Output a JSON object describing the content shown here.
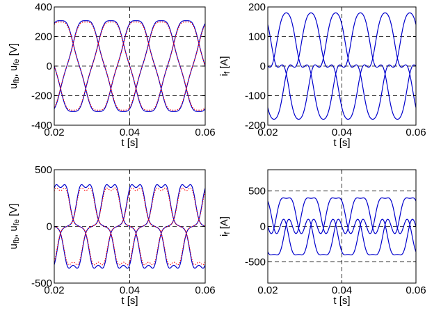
{
  "chart_data": [
    {
      "type": "line",
      "xlabel": "t [s]",
      "ylabel": "u_fb, u_fe [V]",
      "ylabel_parts": {
        "a": "u",
        "a_sub": "fb",
        "sep": ", ",
        "b": "u",
        "b_sub": "fe",
        "unit": " [V]"
      },
      "xlim": [
        0.02,
        0.06
      ],
      "ylim": [
        -400,
        400
      ],
      "xticks": [
        0.02,
        0.04,
        0.06
      ],
      "xtick_labels": [
        "0.02",
        "0.04",
        "0.06"
      ],
      "yticks": [
        -400,
        -200,
        0,
        200,
        400
      ],
      "ytick_labels": [
        "-400",
        "-200",
        "0",
        "200",
        "400"
      ],
      "grid_y": [
        -200,
        0,
        200
      ],
      "grid_x": [
        0.04
      ],
      "model": {
        "amplitude": 320,
        "freq_hz": 50,
        "phases_deg": [
          60,
          -60,
          180
        ],
        "h5": 0.04
      },
      "series": [
        {
          "style": "solid",
          "color": "#0000cc"
        },
        {
          "style": "dotted",
          "color": "#ff0000",
          "scale": 0.97
        }
      ]
    },
    {
      "type": "line",
      "xlabel": "t [s]",
      "ylabel": "i_f [A]",
      "ylabel_parts": {
        "a": "i",
        "a_sub": "f",
        "unit": " [A]"
      },
      "xlim": [
        0.02,
        0.06
      ],
      "ylim": [
        -200,
        200
      ],
      "xticks": [
        0.02,
        0.04,
        0.06
      ],
      "xtick_labels": [
        "0.02",
        "0.04",
        "0.06"
      ],
      "yticks": [
        -200,
        -100,
        0,
        100,
        200
      ],
      "ytick_labels": [
        "-200",
        "-100",
        "0",
        "100",
        "200"
      ],
      "grid_y": [
        -100,
        0,
        100
      ],
      "grid_x": [
        0.04
      ],
      "model": {
        "amplitude": 150,
        "freq_hz": 50,
        "phases_deg": [
          0,
          -120,
          120
        ],
        "h3": 0.28,
        "h5": 0.08
      },
      "series": [
        {
          "style": "solid",
          "color": "#0000cc"
        }
      ]
    },
    {
      "type": "line",
      "xlabel": "t [s]",
      "ylabel": "u_fb, u_fe [V]",
      "ylabel_parts": {
        "a": "u",
        "a_sub": "fb",
        "sep": ", ",
        "b": "u",
        "b_sub": "fe",
        "unit": " [V]"
      },
      "xlim": [
        0.02,
        0.06
      ],
      "ylim": [
        -500,
        500
      ],
      "xticks": [
        0.02,
        0.04,
        0.06
      ],
      "xtick_labels": [
        "0.02",
        "0.04",
        "0.06"
      ],
      "yticks": [
        -500,
        0,
        500
      ],
      "ytick_labels": [
        "-500",
        "0",
        "500"
      ],
      "grid_y": [
        0
      ],
      "grid_x": [
        0.04
      ],
      "model": {
        "amplitude": 330,
        "freq_hz": 50,
        "phases_deg": [
          60,
          -60,
          180
        ],
        "h3": 0.22,
        "h5": 0.12,
        "h7": 0.06
      },
      "series": [
        {
          "style": "solid",
          "color": "#0000cc"
        },
        {
          "style": "dotted",
          "color": "#ff0000",
          "scale": 0.92
        }
      ]
    },
    {
      "type": "line",
      "xlabel": "t [s]",
      "ylabel": "i_f [A]",
      "ylabel_parts": {
        "a": "i",
        "a_sub": "f",
        "unit": " [A]"
      },
      "xlim": [
        0.02,
        0.06
      ],
      "ylim": [
        -800,
        800
      ],
      "xticks": [
        0.02,
        0.04,
        0.06
      ],
      "xtick_labels": [
        "0.02",
        "0.04",
        "0.06"
      ],
      "yticks": [
        -500,
        0,
        500
      ],
      "ytick_labels": [
        "-500",
        "0",
        "500"
      ],
      "grid_y": [
        -500,
        0,
        500
      ],
      "grid_x": [
        0.04
      ],
      "model": {
        "amplitude": 330,
        "freq_hz": 50,
        "phases_deg": [
          0,
          -120,
          120
        ],
        "h3": 0.45,
        "h5": 0.25
      },
      "series": [
        {
          "style": "solid",
          "color": "#0000cc"
        }
      ]
    }
  ]
}
